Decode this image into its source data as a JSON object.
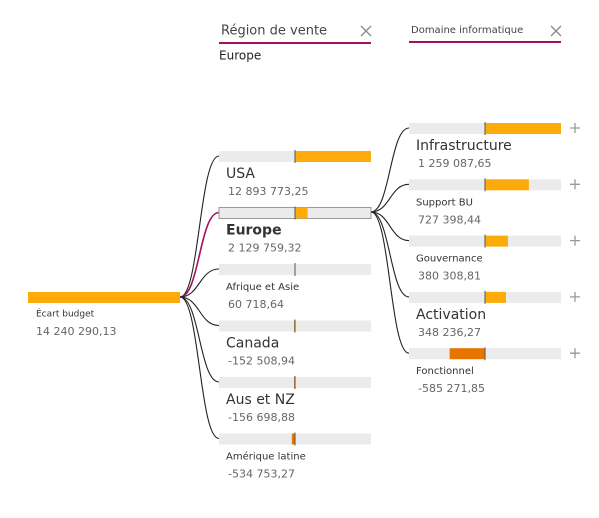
{
  "root": {
    "label": "Écart budget",
    "value": 14240290.13,
    "value_label": "14 240 290,13"
  },
  "levels": [
    {
      "header": "Région de vente",
      "selected": "Europe",
      "nodes": [
        {
          "label": "USA",
          "value": 12893773.25,
          "value_label": "12 893 773,25"
        },
        {
          "label": "Europe",
          "value": 2129759.32,
          "value_label": "2 129 759,32"
        },
        {
          "label": "Afrique et Asie",
          "value": 60718.64,
          "value_label": "60 718,64"
        },
        {
          "label": "Canada",
          "value": -152508.94,
          "value_label": "-152 508,94"
        },
        {
          "label": "Aus et NZ",
          "value": -156698.88,
          "value_label": "-156 698,88"
        },
        {
          "label": "Amérique latine",
          "value": -534753.27,
          "value_label": "-534 753,27"
        }
      ]
    },
    {
      "header": "Domaine informatique",
      "nodes": [
        {
          "label": "Infrastructure",
          "value": 1259087.65,
          "value_label": "1 259 087,65"
        },
        {
          "label": "Support BU",
          "value": 727398.44,
          "value_label": "727 398,44"
        },
        {
          "label": "Gouvernance",
          "value": 380308.81,
          "value_label": "380 308,81"
        },
        {
          "label": "Activation",
          "value": 348236.27,
          "value_label": "348 236,27"
        },
        {
          "label": "Fonctionnel",
          "value": -585271.85,
          "value_label": "-585 271,85"
        }
      ]
    }
  ]
}
